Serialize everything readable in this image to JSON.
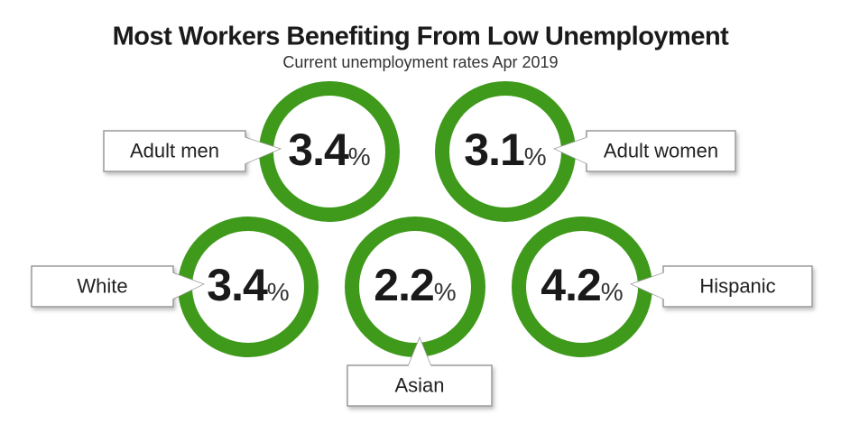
{
  "header": {
    "title": "Most Workers Benefiting From Low Unemployment",
    "subtitle": "Current unemployment rates Apr 2019"
  },
  "unit": "%",
  "items": [
    {
      "label": "Adult men",
      "value": 3.4
    },
    {
      "label": "Adult women",
      "value": 3.1
    },
    {
      "label": "White",
      "value": 3.4
    },
    {
      "label": "Asian",
      "value": 2.2
    },
    {
      "label": "Hispanic",
      "value": 4.2
    }
  ]
}
